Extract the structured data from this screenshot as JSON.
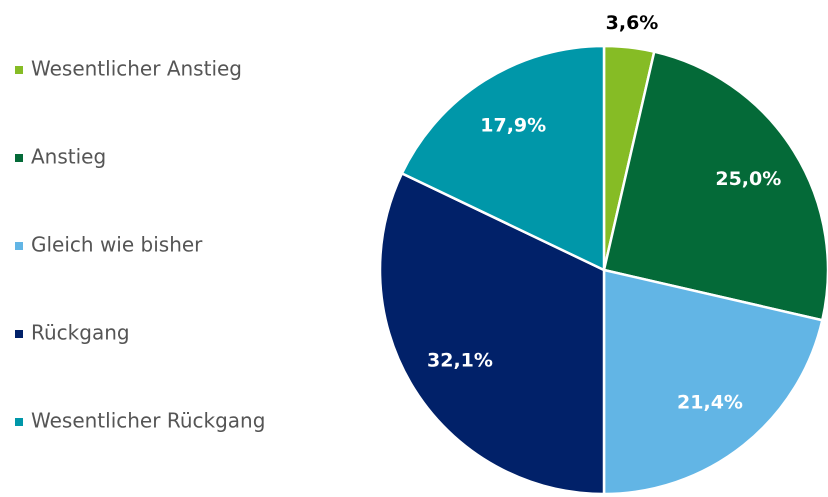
{
  "chart_data": {
    "type": "pie",
    "categories": [
      "Wesentlicher Anstieg",
      "Anstieg",
      "Gleich wie bisher",
      "Rückgang",
      "Wesentlicher Rückgang"
    ],
    "values": [
      3.6,
      25.0,
      21.4,
      32.1,
      17.9
    ],
    "value_labels": [
      "3,6%",
      "25,0%",
      "21,4%",
      "32,1%",
      "17,9%"
    ],
    "colors": [
      "#86bc25",
      "#046a38",
      "#62b5e5",
      "#012169",
      "#0097a9"
    ],
    "legend": "left"
  }
}
